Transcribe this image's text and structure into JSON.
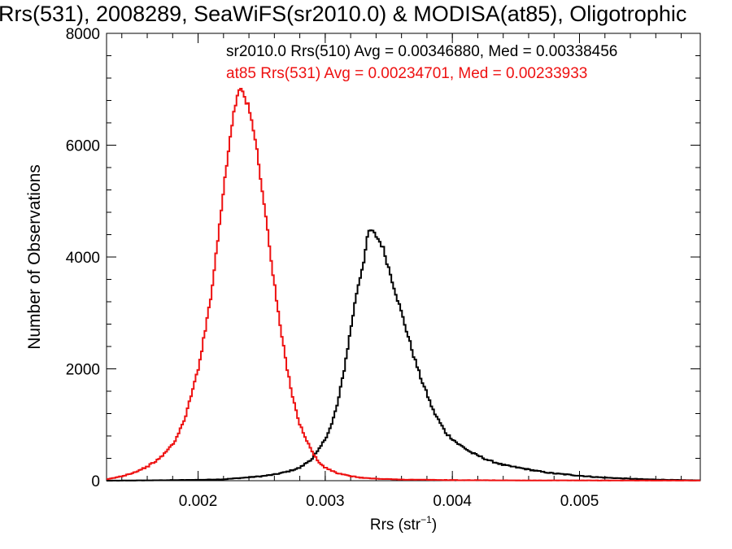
{
  "chart_data": {
    "type": "line",
    "title": "Rrs(531), 2008289, SeaWiFS(sr2010.0) & MODISA(at85), Oligotrophic",
    "xlabel": "Rrs (str",
    "xlabel_sup": "−1",
    "xlabel_close": ")",
    "ylabel": "Number of Observations",
    "xlim": [
      0.00128,
      0.00595
    ],
    "ylim": [
      0,
      8000
    ],
    "grid": false,
    "xticks": [
      {
        "value": 0.002,
        "label": "0.002"
      },
      {
        "value": 0.003,
        "label": "0.003"
      },
      {
        "value": 0.004,
        "label": "0.004"
      },
      {
        "value": 0.005,
        "label": "0.005"
      }
    ],
    "yticks": [
      {
        "value": 0,
        "label": "0"
      },
      {
        "value": 2000,
        "label": "2000"
      },
      {
        "value": 4000,
        "label": "4000"
      },
      {
        "value": 6000,
        "label": "6000"
      },
      {
        "value": 8000,
        "label": "8000"
      }
    ],
    "annotations": [
      {
        "text": "sr2010.0 Rrs(510) Avg = 0.00346880, Med = 0.00338456",
        "color": "#000000"
      },
      {
        "text": "at85 Rrs(531) Avg = 0.00234701, Med = 0.00233933",
        "color": "#ee1111"
      }
    ],
    "series": [
      {
        "color": "#000000",
        "points": [
          [
            0.00128,
            0
          ],
          [
            0.0016,
            5
          ],
          [
            0.0018,
            10
          ],
          [
            0.002,
            15
          ],
          [
            0.0022,
            25
          ],
          [
            0.0024,
            60
          ],
          [
            0.0025,
            80
          ],
          [
            0.0026,
            110
          ],
          [
            0.0027,
            160
          ],
          [
            0.0028,
            230
          ],
          [
            0.0029,
            400
          ],
          [
            0.00295,
            550
          ],
          [
            0.003,
            750
          ],
          [
            0.00305,
            1000
          ],
          [
            0.0031,
            1400
          ],
          [
            0.00315,
            2000
          ],
          [
            0.0032,
            2700
          ],
          [
            0.00325,
            3400
          ],
          [
            0.0033,
            3900
          ],
          [
            0.00333,
            4300
          ],
          [
            0.00335,
            4500
          ],
          [
            0.00338,
            4420
          ],
          [
            0.0034,
            4380
          ],
          [
            0.00345,
            4200
          ],
          [
            0.0035,
            3800
          ],
          [
            0.00355,
            3400
          ],
          [
            0.0036,
            3000
          ],
          [
            0.00365,
            2600
          ],
          [
            0.0037,
            2200
          ],
          [
            0.00375,
            1850
          ],
          [
            0.0038,
            1550
          ],
          [
            0.00385,
            1250
          ],
          [
            0.0039,
            1050
          ],
          [
            0.00395,
            850
          ],
          [
            0.004,
            750
          ],
          [
            0.00405,
            650
          ],
          [
            0.0041,
            580
          ],
          [
            0.00415,
            500
          ],
          [
            0.0042,
            450
          ],
          [
            0.00425,
            400
          ],
          [
            0.0043,
            350
          ],
          [
            0.00435,
            320
          ],
          [
            0.0044,
            280
          ],
          [
            0.0045,
            240
          ],
          [
            0.0046,
            200
          ],
          [
            0.0047,
            160
          ],
          [
            0.0048,
            130
          ],
          [
            0.0049,
            110
          ],
          [
            0.005,
            90
          ],
          [
            0.0051,
            70
          ],
          [
            0.0052,
            55
          ],
          [
            0.0053,
            45
          ],
          [
            0.0054,
            35
          ],
          [
            0.0055,
            25
          ],
          [
            0.0056,
            20
          ],
          [
            0.0057,
            15
          ],
          [
            0.0058,
            10
          ],
          [
            0.00595,
            5
          ]
        ]
      },
      {
        "color": "#ee1111",
        "points": [
          [
            0.00128,
            20
          ],
          [
            0.0014,
            80
          ],
          [
            0.0015,
            150
          ],
          [
            0.0016,
            250
          ],
          [
            0.0017,
            400
          ],
          [
            0.0018,
            650
          ],
          [
            0.00185,
            850
          ],
          [
            0.0019,
            1150
          ],
          [
            0.00195,
            1550
          ],
          [
            0.002,
            2000
          ],
          [
            0.00205,
            2600
          ],
          [
            0.0021,
            3300
          ],
          [
            0.00215,
            4200
          ],
          [
            0.0022,
            5200
          ],
          [
            0.00225,
            6100
          ],
          [
            0.00228,
            6600
          ],
          [
            0.0023,
            6800
          ],
          [
            0.00232,
            7050
          ],
          [
            0.00235,
            6950
          ],
          [
            0.0024,
            6650
          ],
          [
            0.00245,
            6100
          ],
          [
            0.0025,
            5300
          ],
          [
            0.00255,
            4400
          ],
          [
            0.0026,
            3500
          ],
          [
            0.00265,
            2700
          ],
          [
            0.0027,
            2000
          ],
          [
            0.00275,
            1450
          ],
          [
            0.0028,
            1000
          ],
          [
            0.00285,
            750
          ],
          [
            0.0029,
            500
          ],
          [
            0.00295,
            330
          ],
          [
            0.003,
            230
          ],
          [
            0.0031,
            130
          ],
          [
            0.0032,
            80
          ],
          [
            0.0033,
            50
          ],
          [
            0.0034,
            35
          ],
          [
            0.0036,
            20
          ],
          [
            0.004,
            10
          ],
          [
            0.0045,
            5
          ],
          [
            0.00595,
            2
          ]
        ]
      }
    ]
  }
}
